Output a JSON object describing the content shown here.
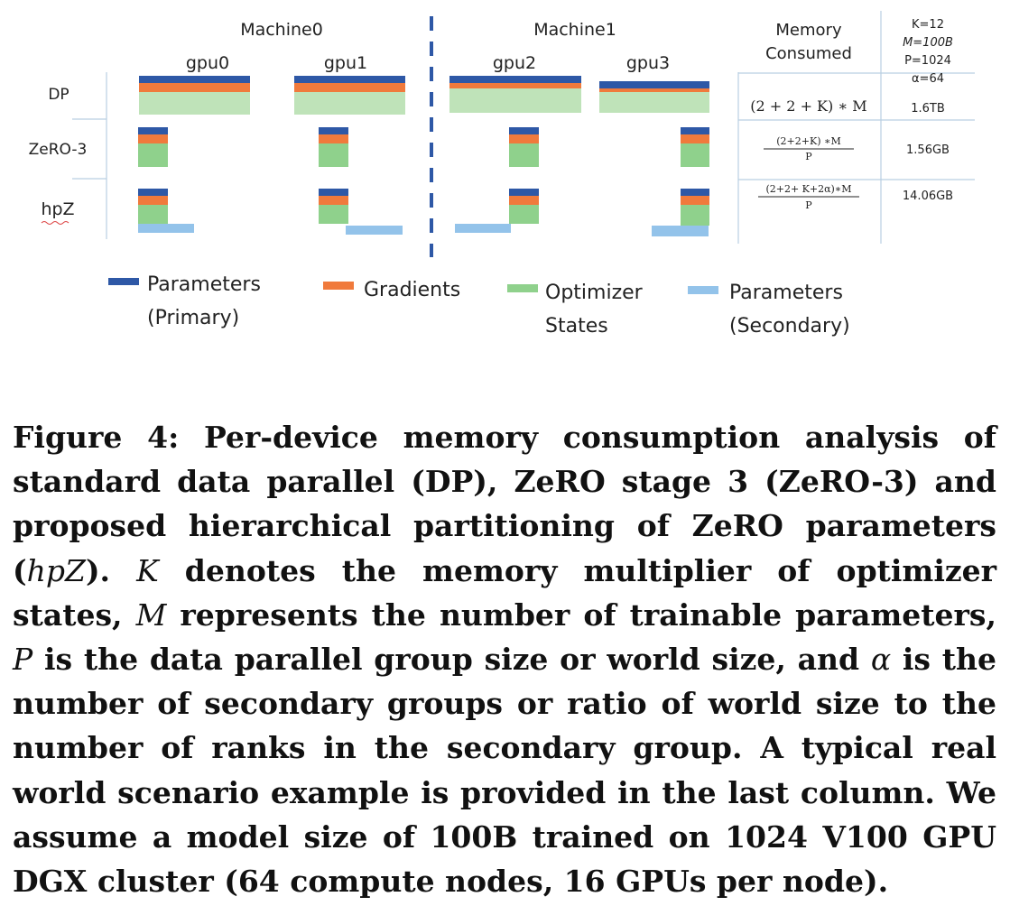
{
  "figure": {
    "machines": [
      "Machine0",
      "Machine1"
    ],
    "gpus": [
      "gpu0",
      "gpu1",
      "gpu2",
      "gpu3"
    ],
    "rows": [
      "DP",
      "ZeRO-3",
      "hpZ"
    ],
    "memory_header": [
      "Memory",
      "Consumed"
    ],
    "example_header": [
      "K=12",
      "M=100B",
      "P=1024",
      "α=64"
    ],
    "formulas": {
      "dp": "(2 + 2 + K) ∗ M",
      "zero3_num": "(2+2+K) ∗M",
      "zero3_den": "P",
      "hpz_num": "(2+2+ K+2α)∗M",
      "hpz_den": "P"
    },
    "example_values": [
      "1.6TB",
      "1.56GB",
      "14.06GB"
    ],
    "legend": [
      {
        "line1": "Parameters",
        "line2": "(Primary)",
        "color": "#2e58a6"
      },
      {
        "line1": "Gradients",
        "line2": "",
        "color": "#f07a3c"
      },
      {
        "line1": "Optimizer",
        "line2": "States",
        "color": "#8fd18c"
      },
      {
        "line1": "Parameters",
        "line2": "(Secondary)",
        "color": "#93c3ea"
      }
    ]
  },
  "caption": {
    "p1": "Figure 4: Per-device memory consumption analysis of standard data parallel (DP), ZeRO stage 3 (ZeRO-3) and proposed hierarchical partitioning of ZeRO parameters (",
    "hpz": "hpZ",
    "p2": "). ",
    "k": "K",
    "p3": " denotes the memory multiplier of optimizer states, ",
    "m": "M",
    "p4": " represents the number of trainable parameters, ",
    "p": "P",
    "p5": " is the data parallel group size or world size, and ",
    "alpha": "α",
    "p6": " is the number of secondary groups or ratio of world size to the number of ranks in the secondary group. A typical real world scenario example is provided in the last column. We assume a model size of 100B trained on 1024 V100 GPU DGX cluster (64 compute nodes, 16 GPUs per node)."
  }
}
